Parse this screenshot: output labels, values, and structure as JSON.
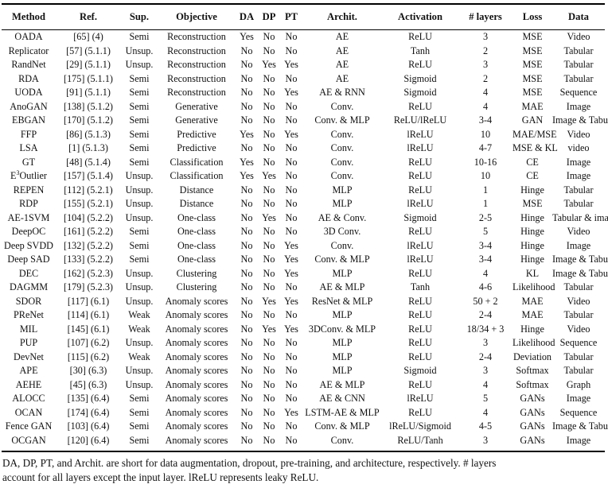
{
  "headers": [
    "Method",
    "Ref.",
    "Sup.",
    "Objective",
    "DA",
    "DP",
    "PT",
    "Archit.",
    "Activation",
    "# layers",
    "Loss",
    "Data"
  ],
  "rows": [
    [
      "OADA",
      "[65] (4)",
      "Semi",
      "Reconstruction",
      "Yes",
      "No",
      "No",
      "AE",
      "ReLU",
      "3",
      "MSE",
      "Video"
    ],
    [
      "Replicator",
      "[57] (5.1.1)",
      "Unsup.",
      "Reconstruction",
      "No",
      "No",
      "No",
      "AE",
      "Tanh",
      "2",
      "MSE",
      "Tabular"
    ],
    [
      "RandNet",
      "[29] (5.1.1)",
      "Unsup.",
      "Reconstruction",
      "No",
      "Yes",
      "Yes",
      "AE",
      "ReLU",
      "3",
      "MSE",
      "Tabular"
    ],
    [
      "RDA",
      "[175] (5.1.1)",
      "Semi",
      "Reconstruction",
      "No",
      "No",
      "No",
      "AE",
      "Sigmoid",
      "2",
      "MSE",
      "Tabular"
    ],
    [
      "UODA",
      "[91] (5.1.1)",
      "Semi",
      "Reconstruction",
      "No",
      "No",
      "Yes",
      "AE & RNN",
      "Sigmoid",
      "4",
      "MSE",
      "Sequence"
    ],
    [
      "AnoGAN",
      "[138] (5.1.2)",
      "Semi",
      "Generative",
      "No",
      "No",
      "No",
      "Conv.",
      "ReLU",
      "4",
      "MAE",
      "Image"
    ],
    [
      "EBGAN",
      "[170] (5.1.2)",
      "Semi",
      "Generative",
      "No",
      "No",
      "No",
      "Conv. & MLP",
      "ReLU/lReLU",
      "3-4",
      "GAN",
      "Image & Tabular"
    ],
    [
      "FFP",
      "[86] (5.1.3)",
      "Semi",
      "Predictive",
      "Yes",
      "No",
      "Yes",
      "Conv.",
      "lReLU",
      "10",
      "MAE/MSE",
      "Video"
    ],
    [
      "LSA",
      "[1] (5.1.3)",
      "Semi",
      "Predictive",
      "No",
      "No",
      "No",
      "Conv.",
      "lReLU",
      "4-7",
      "MSE & KL",
      "video"
    ],
    [
      "GT",
      "[48] (5.1.4)",
      "Semi",
      "Classification",
      "Yes",
      "No",
      "No",
      "Conv.",
      "ReLU",
      "10-16",
      "CE",
      "Image"
    ],
    [
      "E3Outlier",
      "[157] (5.1.4)",
      "Unsup.",
      "Classification",
      "Yes",
      "Yes",
      "No",
      "Conv.",
      "ReLU",
      "10",
      "CE",
      "Image"
    ],
    [
      "REPEN",
      "[112] (5.2.1)",
      "Unsup.",
      "Distance",
      "No",
      "No",
      "No",
      "MLP",
      "ReLU",
      "1",
      "Hinge",
      "Tabular"
    ],
    [
      "RDP",
      "[155] (5.2.1)",
      "Unsup.",
      "Distance",
      "No",
      "No",
      "No",
      "MLP",
      "lReLU",
      "1",
      "MSE",
      "Tabular"
    ],
    [
      "AE-1SVM",
      "[104] (5.2.2)",
      "Unsup.",
      "One-class",
      "No",
      "Yes",
      "No",
      "AE & Conv.",
      "Sigmoid",
      "2-5",
      "Hinge",
      "Tabular & image"
    ],
    [
      "DeepOC",
      "[161] (5.2.2)",
      "Semi",
      "One-class",
      "No",
      "No",
      "No",
      "3D Conv.",
      "ReLU",
      "5",
      "Hinge",
      "Video"
    ],
    [
      "Deep SVDD",
      "[132] (5.2.2)",
      "Semi",
      "One-class",
      "No",
      "No",
      "Yes",
      "Conv.",
      "lReLU",
      "3-4",
      "Hinge",
      "Image"
    ],
    [
      "Deep SAD",
      "[133] (5.2.2)",
      "Semi",
      "One-class",
      "No",
      "No",
      "Yes",
      "Conv. & MLP",
      "lReLU",
      "3-4",
      "Hinge",
      "Image & Tabular"
    ],
    [
      "DEC",
      "[162] (5.2.3)",
      "Unsup.",
      "Clustering",
      "No",
      "No",
      "Yes",
      "MLP",
      "ReLU",
      "4",
      "KL",
      "Image & Tabular"
    ],
    [
      "DAGMM",
      "[179] (5.2.3)",
      "Unsup.",
      "Clustering",
      "No",
      "No",
      "No",
      "AE & MLP",
      "Tanh",
      "4-6",
      "Likelihood",
      "Tabular"
    ],
    [
      "SDOR",
      "[117] (6.1)",
      "Unsup.",
      "Anomaly scores",
      "No",
      "Yes",
      "Yes",
      "ResNet & MLP",
      "ReLU",
      "50 + 2",
      "MAE",
      "Video"
    ],
    [
      "PReNet",
      "[114] (6.1)",
      "Weak",
      "Anomaly scores",
      "No",
      "No",
      "No",
      "MLP",
      "ReLU",
      "2-4",
      "MAE",
      "Tabular"
    ],
    [
      "MIL",
      "[145] (6.1)",
      "Weak",
      "Anomaly scores",
      "No",
      "Yes",
      "Yes",
      "3DConv. & MLP",
      "ReLU",
      "18/34 + 3",
      "Hinge",
      "Video"
    ],
    [
      "PUP",
      "[107] (6.2)",
      "Unsup.",
      "Anomaly scores",
      "No",
      "No",
      "No",
      "MLP",
      "ReLU",
      "3",
      "Likelihood",
      "Sequence"
    ],
    [
      "DevNet",
      "[115] (6.2)",
      "Weak",
      "Anomaly scores",
      "No",
      "No",
      "No",
      "MLP",
      "ReLU",
      "2-4",
      "Deviation",
      "Tabular"
    ],
    [
      "APE",
      "[30] (6.3)",
      "Unsup.",
      "Anomaly scores",
      "No",
      "No",
      "No",
      "MLP",
      "Sigmoid",
      "3",
      "Softmax",
      "Tabular"
    ],
    [
      "AEHE",
      "[45] (6.3)",
      "Unsup.",
      "Anomaly scores",
      "No",
      "No",
      "No",
      "AE & MLP",
      "ReLU",
      "4",
      "Softmax",
      "Graph"
    ],
    [
      "ALOCC",
      "[135] (6.4)",
      "Semi",
      "Anomaly scores",
      "No",
      "No",
      "No",
      "AE & CNN",
      "lReLU",
      "5",
      "GANs",
      "Image"
    ],
    [
      "OCAN",
      "[174] (6.4)",
      "Semi",
      "Anomaly scores",
      "No",
      "No",
      "Yes",
      "LSTM-AE & MLP",
      "ReLU",
      "4",
      "GANs",
      "Sequence"
    ],
    [
      "Fence GAN",
      "[103] (6.4)",
      "Semi",
      "Anomaly scores",
      "No",
      "No",
      "No",
      "Conv. & MLP",
      "lReLU/Sigmoid",
      "4-5",
      "GANs",
      "Image & Tabular"
    ],
    [
      "OCGAN",
      "[120] (6.4)",
      "Semi",
      "Anomaly scores",
      "No",
      "No",
      "No",
      "Conv.",
      "ReLU/Tanh",
      "3",
      "GANs",
      "Image"
    ]
  ],
  "caption": {
    "line1": "DA, DP, PT, and Archit. are short for data augmentation, dropout, pre-training, and architecture, respectively. # layers",
    "line2": "account for all layers except the input layer. lReLU represents leaky ReLU."
  }
}
